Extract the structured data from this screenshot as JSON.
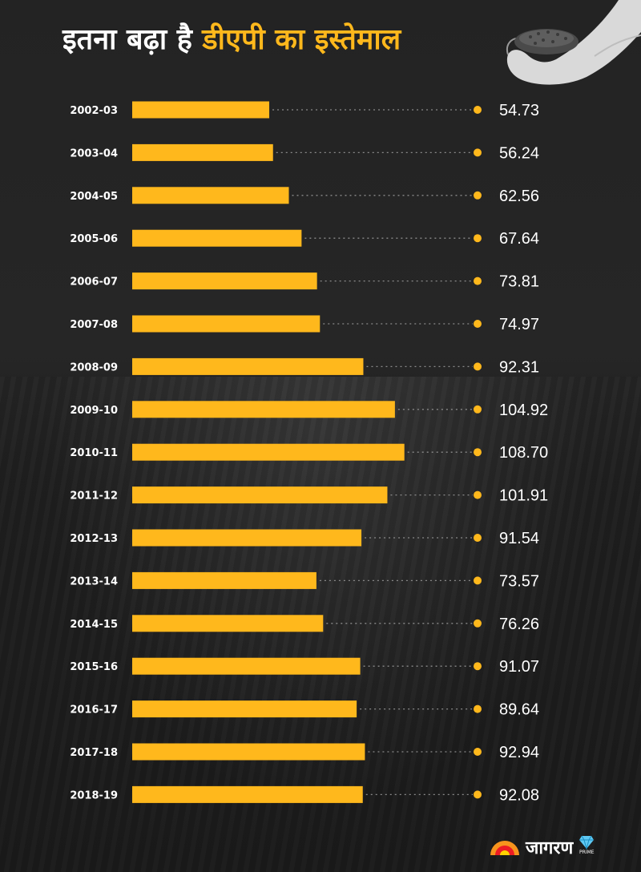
{
  "title": {
    "part1": "इतना बढ़ा है",
    "part2": "डीएपी का इस्तेमाल"
  },
  "colors": {
    "background": "#232323",
    "bar": "#ffb81c",
    "dot": "#ffb81c",
    "title_accent": "#ffb81c",
    "text": "#ffffff"
  },
  "chart_data": {
    "type": "bar",
    "orientation": "horizontal",
    "categories": [
      "2002-03",
      "2003-04",
      "2004-05",
      "2005-06",
      "2006-07",
      "2007-08",
      "2008-09",
      "2009-10",
      "2010-11",
      "2011-12",
      "2012-13",
      "2013-14",
      "2014-15",
      "2015-16",
      "2016-17",
      "2017-18",
      "2018-19"
    ],
    "values": [
      54.73,
      56.24,
      62.56,
      67.64,
      73.81,
      74.97,
      92.31,
      104.92,
      108.7,
      101.91,
      91.54,
      73.57,
      76.26,
      91.07,
      89.64,
      92.94,
      92.08
    ],
    "value_labels": [
      "54.73",
      "56.24",
      "62.56",
      "67.64",
      "73.81",
      "74.97",
      "92.31",
      "104.92",
      "108.70",
      "101.91",
      "91.54",
      "73.57",
      "76.26",
      "91.07",
      "89.64",
      "92.94",
      "92.08"
    ],
    "title": "इतना बढ़ा है डीएपी का इस्तेमाल",
    "grid": false,
    "legend": "none"
  },
  "logo": {
    "text": "जागरण",
    "sub": "PRIME"
  }
}
